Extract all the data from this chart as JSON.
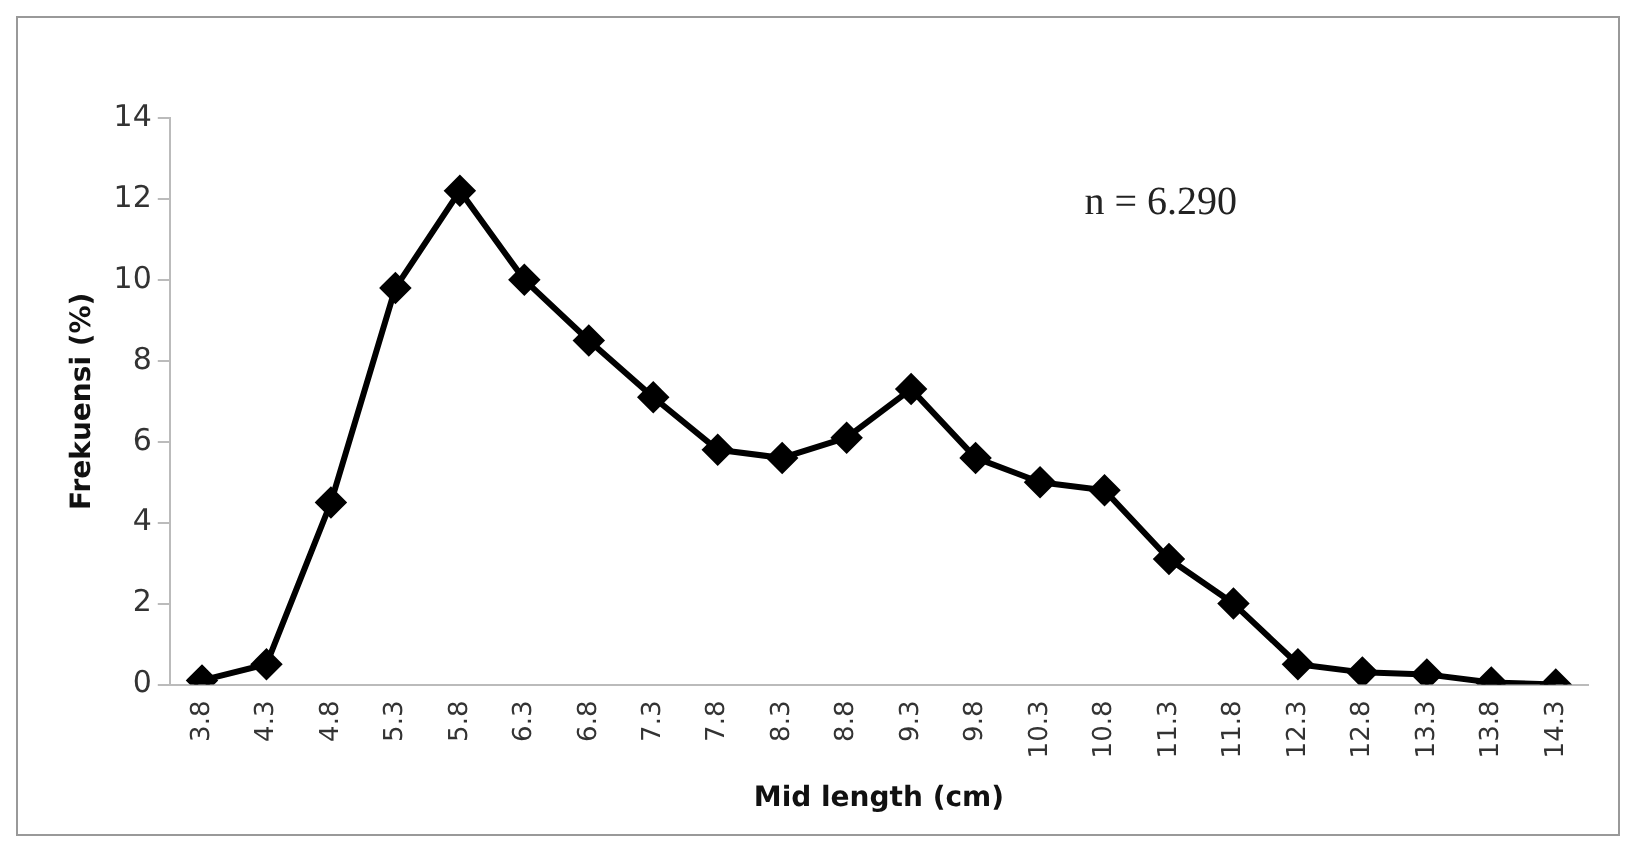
{
  "chart_data": {
    "type": "line",
    "xlabel": "Mid length (cm)",
    "ylabel": "Frekuensi (%)",
    "categories": [
      "3.8",
      "4.3",
      "4.8",
      "5.3",
      "5.8",
      "6.3",
      "6.8",
      "7.3",
      "7.8",
      "8.3",
      "8.8",
      "9.3",
      "9.8",
      "10.3",
      "10.8",
      "11.3",
      "11.8",
      "12.3",
      "12.8",
      "13.3",
      "13.8",
      "14.3"
    ],
    "series": [
      {
        "color": "#000000",
        "values": [
          0.1,
          0.5,
          4.5,
          9.8,
          12.2,
          10,
          8.5,
          7.1,
          5.8,
          5.6,
          6.1,
          7.3,
          5.6,
          5.0,
          4.8,
          3.1,
          2.0,
          0.5,
          0.3,
          0.25,
          0.05,
          0
        ]
      }
    ],
    "ylim": [
      0,
      14
    ],
    "yticks": [
      0,
      2,
      4,
      6,
      8,
      10,
      12,
      14
    ],
    "grid": false,
    "legend": false,
    "marker": "diamond",
    "line_style": "solid",
    "annotations": [
      "n = 6.290"
    ]
  }
}
